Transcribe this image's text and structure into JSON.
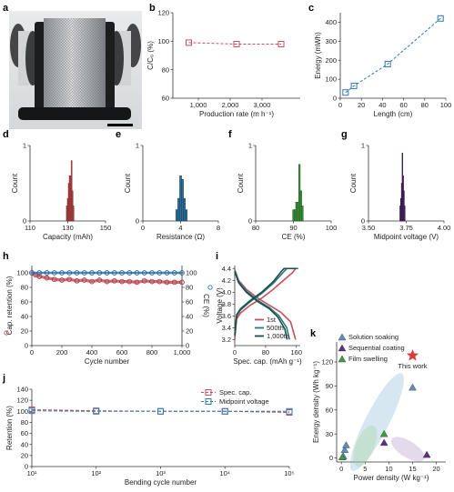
{
  "colors": {
    "red": "#c8505a",
    "blue": "#2f78b4",
    "dark_blue": "#1e5f8a",
    "green": "#3a8f3a",
    "purple": "#5b2a7a",
    "teal": "#3d8f8f",
    "star": "#d93a3a"
  },
  "panel_labels": {
    "a": "a",
    "b": "b",
    "c": "c",
    "d": "d",
    "e": "e",
    "f": "f",
    "g": "g",
    "h": "h",
    "i": "i",
    "j": "j",
    "k": "k"
  },
  "photo": {
    "description_icon": "fiber-battery-spool-photo"
  },
  "chart_data": [
    {
      "id": "b",
      "type": "line",
      "x": [
        700,
        2200,
        3600
      ],
      "y": [
        99,
        98,
        98
      ],
      "xlabel": "Production rate (m h⁻¹)",
      "ylabel": "C/C₀ (%)",
      "xlim": [
        200,
        4200
      ],
      "ylim": [
        60,
        120
      ],
      "xticks": [
        1000,
        2000,
        3000
      ],
      "xtick_labels": [
        "1,000",
        "2,000",
        "3,000"
      ],
      "yticks": [
        60,
        80,
        100,
        120
      ],
      "ytick_labels": [
        "60",
        "80",
        "100",
        "120"
      ]
    },
    {
      "id": "c",
      "type": "line",
      "x": [
        5,
        13,
        45,
        95
      ],
      "y": [
        30,
        65,
        180,
        420
      ],
      "xlabel": "Length (cm)",
      "ylabel": "Energy (mWh)",
      "xlim": [
        0,
        100
      ],
      "ylim": [
        0,
        450
      ],
      "xticks": [
        0,
        20,
        40,
        60,
        80,
        100
      ],
      "xtick_labels": [
        "0",
        "20",
        "40",
        "60",
        "80",
        "100"
      ],
      "yticks": [
        0,
        100,
        200,
        300,
        400
      ],
      "ytick_labels": [
        "0",
        "100",
        "200",
        "300",
        "400"
      ]
    },
    {
      "id": "d",
      "type": "bar",
      "bins": [
        129.5,
        130.0,
        130.5,
        131.0,
        131.5,
        132.0,
        132.5,
        133.0
      ],
      "values": [
        0.2,
        0.3,
        0.5,
        0.6,
        0.6,
        0.8,
        0.4,
        0.2
      ],
      "xlabel": "Capacity (mAh)",
      "ylabel": "Count",
      "xlim": [
        110,
        150
      ],
      "ylim": [
        0,
        1
      ],
      "xticks": [
        110,
        130,
        150
      ],
      "xtick_labels": [
        "110",
        "130",
        "150"
      ],
      "yticks": [
        0,
        1
      ],
      "ytick_labels": [
        "0",
        "1"
      ]
    },
    {
      "id": "e",
      "type": "bar",
      "bins": [
        3.6,
        3.8,
        4.0,
        4.2,
        4.4,
        4.6
      ],
      "values": [
        0.15,
        0.3,
        0.6,
        0.55,
        0.3,
        0.15
      ],
      "xlabel": "Resistance (Ω)",
      "ylabel": "Count",
      "xlim": [
        0,
        8
      ],
      "ylim": [
        0,
        1
      ],
      "xticks": [
        0,
        4,
        8
      ],
      "xtick_labels": [
        "0",
        "4",
        "8"
      ],
      "yticks": [
        0,
        1
      ],
      "ytick_labels": [
        "0",
        "1"
      ]
    },
    {
      "id": "f",
      "type": "bar",
      "bins": [
        90.0,
        90.4,
        90.8,
        91.2,
        91.6,
        92.0,
        92.4
      ],
      "values": [
        0.15,
        0.15,
        0.25,
        0.25,
        0.75,
        0.4,
        0.2
      ],
      "xlabel": "CE (%)",
      "ylabel": "Count",
      "xlim": [
        80,
        100
      ],
      "ylim": [
        0,
        1
      ],
      "xticks": [
        80,
        90,
        100
      ],
      "xtick_labels": [
        "80",
        "90",
        "100"
      ],
      "yticks": [
        0,
        1
      ],
      "ytick_labels": [
        "0",
        "1"
      ]
    },
    {
      "id": "g",
      "type": "bar",
      "bins": [
        3.71,
        3.715,
        3.72,
        3.725,
        3.73,
        3.735,
        3.74
      ],
      "values": [
        0.2,
        0.3,
        0.5,
        0.9,
        0.6,
        0.4,
        0.2
      ],
      "xlabel": "Midpoint voltage (V)",
      "ylabel": "Count",
      "xlim": [
        3.5,
        4.0
      ],
      "ylim": [
        0,
        1
      ],
      "xticks": [
        3.5,
        3.75,
        4.0
      ],
      "xtick_labels": [
        "3.50",
        "3.75",
        "4.00"
      ],
      "yticks": [
        0,
        1
      ],
      "ytick_labels": [
        "0",
        "1"
      ]
    },
    {
      "id": "h",
      "type": "line",
      "series": [
        {
          "name": "Cap. retention (%)",
          "axis": "left",
          "x": [
            0,
            25,
            50,
            100,
            150,
            200,
            250,
            300,
            350,
            400,
            450,
            500,
            550,
            600,
            650,
            700,
            750,
            800,
            850,
            900,
            950,
            1000
          ],
          "y": [
            100,
            97,
            95,
            93,
            91,
            90,
            91,
            89,
            90,
            88,
            90,
            88,
            89,
            88,
            88,
            87,
            89,
            88,
            88,
            87,
            87,
            87
          ]
        },
        {
          "name": "CE (%)",
          "axis": "right",
          "x": [
            0,
            50,
            100,
            150,
            200,
            250,
            300,
            350,
            400,
            450,
            500,
            550,
            600,
            650,
            700,
            750,
            800,
            850,
            900,
            950,
            1000
          ],
          "y": [
            100,
            100,
            100,
            100,
            100,
            100,
            100,
            100,
            100,
            100,
            100,
            100,
            100,
            100,
            100,
            100,
            100,
            100,
            100,
            100,
            100
          ]
        }
      ],
      "xlabel": "Cycle number",
      "ylabel": "Cap. retention (%)",
      "y2label": "CE (%)",
      "xlim": [
        0,
        1000
      ],
      "ylim": [
        0,
        110
      ],
      "y2lim": [
        0,
        110
      ],
      "xticks": [
        0,
        200,
        400,
        600,
        800,
        1000
      ],
      "xtick_labels": [
        "0",
        "200",
        "400",
        "600",
        "800",
        "1,000"
      ],
      "yticks": [
        0,
        20,
        40,
        60,
        80,
        100
      ],
      "ytick_labels": [
        "0",
        "20",
        "40",
        "60",
        "80",
        "100"
      ],
      "y2ticks": [
        0,
        20,
        40,
        60,
        80,
        100
      ],
      "y2tick_labels": [
        "0",
        "20",
        "40",
        "60",
        "80",
        "100"
      ]
    },
    {
      "id": "i",
      "type": "line",
      "series": [
        {
          "name": "1st",
          "charge": [
            [
              0,
              3.2
            ],
            [
              5,
              3.55
            ],
            [
              15,
              3.65
            ],
            [
              40,
              3.78
            ],
            [
              70,
              3.9
            ],
            [
              100,
              4.05
            ],
            [
              130,
              4.22
            ],
            [
              150,
              4.33
            ],
            [
              158,
              4.4
            ]
          ],
          "discharge": [
            [
              0,
              4.38
            ],
            [
              10,
              4.2
            ],
            [
              30,
              4.05
            ],
            [
              60,
              3.9
            ],
            [
              90,
              3.78
            ],
            [
              120,
              3.66
            ],
            [
              145,
              3.5
            ],
            [
              158,
              3.2
            ]
          ]
        },
        {
          "name": "500th",
          "charge": [
            [
              0,
              3.25
            ],
            [
              5,
              3.6
            ],
            [
              15,
              3.7
            ],
            [
              40,
              3.84
            ],
            [
              70,
              3.98
            ],
            [
              100,
              4.15
            ],
            [
              125,
              4.33
            ],
            [
              135,
              4.4
            ],
            [
              165,
              4.4
            ]
          ],
          "discharge": [
            [
              0,
              4.36
            ],
            [
              10,
              4.18
            ],
            [
              30,
              4.02
            ],
            [
              60,
              3.86
            ],
            [
              90,
              3.74
            ],
            [
              115,
              3.6
            ],
            [
              135,
              3.4
            ],
            [
              142,
              3.2
            ]
          ]
        },
        {
          "name": "1,000th",
          "charge": [
            [
              0,
              3.28
            ],
            [
              5,
              3.62
            ],
            [
              15,
              3.72
            ],
            [
              40,
              3.86
            ],
            [
              70,
              4.0
            ],
            [
              100,
              4.18
            ],
            [
              122,
              4.36
            ],
            [
              128,
              4.4
            ],
            [
              160,
              4.4
            ]
          ],
          "discharge": [
            [
              0,
              4.35
            ],
            [
              10,
              4.16
            ],
            [
              30,
              4.0
            ],
            [
              60,
              3.84
            ],
            [
              90,
              3.72
            ],
            [
              112,
              3.58
            ],
            [
              130,
              3.38
            ],
            [
              136,
              3.2
            ]
          ]
        }
      ],
      "xlabel": "Spec. cap. (mAh g⁻¹)",
      "ylabel": "Voltage (V)",
      "xlim": [
        0,
        170
      ],
      "ylim": [
        3.1,
        4.45
      ],
      "xticks": [
        0,
        80,
        160
      ],
      "xtick_labels": [
        "0",
        "80",
        "160"
      ],
      "yticks": [
        3.2,
        3.4,
        3.6,
        3.8,
        4.0,
        4.2,
        4.4
      ],
      "ytick_labels": [
        "3.2",
        "3.4",
        "3.6",
        "3.8",
        "4.0",
        "4.2",
        "4.4"
      ]
    },
    {
      "id": "j",
      "type": "line",
      "series": [
        {
          "name": "Spec. cap.",
          "x": [
            10,
            100,
            1000,
            10000,
            100000
          ],
          "y": [
            103,
            101,
            100,
            100,
            98
          ]
        },
        {
          "name": "Midpoint voltage",
          "x": [
            10,
            100,
            1000,
            10000,
            100000
          ],
          "y": [
            101,
            100,
            100,
            100,
            100
          ]
        }
      ],
      "xlabel": "Bending cycle number",
      "ylabel": "Retention (%)",
      "xscale": "log",
      "xlim": [
        10,
        100000
      ],
      "ylim": [
        0,
        140
      ],
      "xticks": [
        10,
        100,
        1000,
        10000,
        100000
      ],
      "xtick_labels": [
        "10¹",
        "10²",
        "10³",
        "10⁴",
        "10⁵"
      ],
      "yticks": [
        0,
        20,
        40,
        60,
        80,
        100,
        120,
        140
      ],
      "ytick_labels": [
        "0",
        "20",
        "40",
        "60",
        "80",
        "100",
        "120",
        "140"
      ]
    },
    {
      "id": "k",
      "type": "scatter",
      "series": [
        {
          "name": "Solution soaking",
          "marker": "triangle",
          "points": [
            [
              0.4,
              2
            ],
            [
              0.7,
              10
            ],
            [
              1.0,
              16
            ],
            [
              15,
              88
            ]
          ]
        },
        {
          "name": "Sequential coating",
          "marker": "triangle",
          "points": [
            [
              9,
              19
            ],
            [
              18,
              4
            ]
          ]
        },
        {
          "name": "Film swelling",
          "marker": "triangle",
          "points": [
            [
              0.2,
              1
            ],
            [
              9,
              30
            ]
          ]
        },
        {
          "name": "This work",
          "marker": "star",
          "points": [
            [
              15,
              128
            ]
          ]
        }
      ],
      "xlabel": "Power density (W kg⁻¹)",
      "ylabel": "Energy density (Wh kg⁻¹)",
      "xlim": [
        -1,
        22
      ],
      "ylim": [
        -5,
        145
      ],
      "xticks": [
        0,
        5,
        10,
        15,
        20
      ],
      "xtick_labels": [
        "0",
        "5",
        "10",
        "15",
        "20"
      ],
      "yticks": [
        0,
        30,
        60,
        90,
        120
      ],
      "ytick_labels": [
        "0",
        "30",
        "60",
        "90",
        "120"
      ]
    }
  ]
}
